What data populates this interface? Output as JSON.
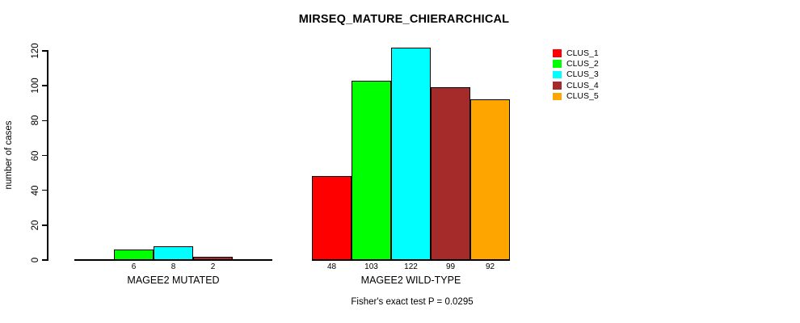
{
  "chart_data": {
    "type": "bar",
    "title": "MIRSEQ_MATURE_CHIERARCHICAL",
    "ylabel": "number of cases",
    "xlabel": "",
    "footnote": "Fisher's exact test P = 0.0295",
    "yticks": [
      0,
      20,
      40,
      60,
      80,
      100,
      120
    ],
    "ylim": [
      0,
      120
    ],
    "grid": false,
    "legend_position": "top-right",
    "background_color": "#ffffff",
    "series": [
      {
        "name": "CLUS_1",
        "color": "#ff0000"
      },
      {
        "name": "CLUS_2",
        "color": "#00ff00"
      },
      {
        "name": "CLUS_3",
        "color": "#00ffff"
      },
      {
        "name": "CLUS_4",
        "color": "#a52a2a"
      },
      {
        "name": "CLUS_5",
        "color": "#ffa500"
      }
    ],
    "groups": [
      {
        "label": "MAGEE2 MUTATED",
        "values": [
          0,
          6,
          8,
          2,
          0
        ],
        "bar_labels": [
          "",
          "6",
          "8",
          "2",
          ""
        ]
      },
      {
        "label": "MAGEE2 WILD-TYPE",
        "values": [
          48,
          103,
          122,
          99,
          92
        ],
        "bar_labels": [
          "48",
          "103",
          "122",
          "99",
          "92"
        ]
      }
    ]
  }
}
